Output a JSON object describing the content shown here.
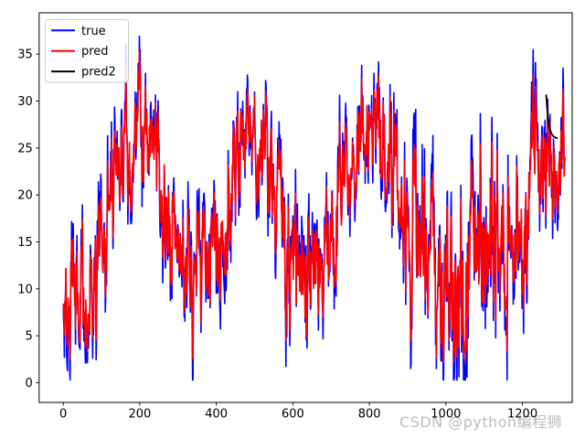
{
  "watermark": {
    "text": "CSDN @python编程狮",
    "color": "#bdbdbd"
  },
  "chart_data": {
    "type": "line",
    "title": "",
    "xlabel": "",
    "ylabel": "",
    "xlim": [
      -63,
      1330
    ],
    "ylim": [
      -2.1,
      39.4
    ],
    "xticks": [
      0,
      200,
      400,
      600,
      800,
      1000,
      1200
    ],
    "yticks": [
      0,
      5,
      10,
      15,
      20,
      25,
      30,
      35
    ],
    "grid": false,
    "legend": {
      "position": "upper-left",
      "entries": [
        "true",
        "pred",
        "pred2"
      ]
    },
    "colors": {
      "true": "#0000ff",
      "pred": "#ff0000",
      "pred2": "#000000",
      "spine": "#000000",
      "tick_label": "#000000"
    },
    "series": [
      {
        "name": "true",
        "color": "#0000ff",
        "generator": {
          "kind": "seasonal-noisy",
          "seed": 987654,
          "n": 1312,
          "ar": 0.7,
          "noise_gain": 0.75,
          "noise_half_range": 1.6,
          "clip": [
            0.3,
            37.9
          ],
          "envelope_x": [
            0,
            40,
            80,
            120,
            160,
            200,
            240,
            280,
            330,
            370,
            410,
            450,
            490,
            530,
            570,
            615,
            655,
            700,
            740,
            790,
            830,
            870,
            910,
            950,
            990,
            1030,
            1070,
            1110,
            1150,
            1190,
            1230,
            1270,
            1312
          ],
          "envelope_y": [
            13,
            9,
            10,
            17,
            24.5,
            27.5,
            24,
            17,
            10,
            12,
            17,
            24,
            28,
            25,
            17,
            8.5,
            10,
            15,
            22,
            28,
            27,
            22,
            14,
            11,
            9,
            13,
            11,
            16,
            17,
            16,
            20,
            23,
            25
          ],
          "spread_y": [
            7.5,
            7.5,
            8,
            7.5,
            6.5,
            6,
            6.5,
            7,
            7,
            7.5,
            7,
            6.5,
            5.5,
            6.5,
            7.5,
            7.5,
            8,
            7.5,
            7,
            5.5,
            6,
            8,
            9.5,
            10,
            9.5,
            12,
            11,
            11,
            10,
            9,
            8,
            6.5,
            6
          ]
        }
      },
      {
        "name": "pred",
        "color": "#ff0000",
        "generator": {
          "kind": "damped-copy",
          "derived_from": "true",
          "seed": 424242,
          "damp": 0.78,
          "jitter": 1.6,
          "clip": [
            0.5,
            36.5
          ]
        }
      },
      {
        "name": "pred2",
        "color": "#000000",
        "x": [
          1262,
          1264,
          1266,
          1268,
          1270,
          1272,
          1274,
          1276,
          1278,
          1280,
          1282,
          1284,
          1286,
          1288,
          1290,
          1292
        ],
        "y": [
          30.7,
          29.44,
          28.52,
          27.84,
          27.35,
          26.99,
          26.72,
          26.53,
          26.39,
          26.28,
          26.21,
          26.15,
          26.11,
          26.08,
          26.06,
          26.04
        ]
      }
    ]
  }
}
